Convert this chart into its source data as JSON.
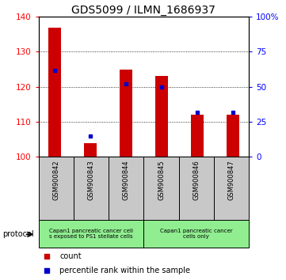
{
  "title": "GDS5099 / ILMN_1686937",
  "categories": [
    "GSM900842",
    "GSM900843",
    "GSM900844",
    "GSM900845",
    "GSM900846",
    "GSM900847"
  ],
  "red_values": [
    137.0,
    104.0,
    125.0,
    123.0,
    112.0,
    112.0
  ],
  "blue_percentiles": [
    62,
    15,
    52,
    50,
    32,
    32
  ],
  "ylim_left": [
    100,
    140
  ],
  "ylim_right": [
    0,
    100
  ],
  "yticks_left": [
    100,
    110,
    120,
    130,
    140
  ],
  "yticks_right": [
    0,
    25,
    50,
    75,
    100
  ],
  "ytick_right_labels": [
    "0",
    "25",
    "50",
    "75",
    "100%"
  ],
  "group1_label": "Capan1 pancreatic cancer cell\ns exposed to PS1 stellate cells",
  "group2_label": "Capan1 pancreatic cancer\ncells only",
  "protocol_label": "protocol",
  "legend_count_label": "count",
  "legend_percentile_label": "percentile rank within the sample",
  "red_color": "#cc0000",
  "blue_color": "#0000cc",
  "group_bg_color": "#90ee90",
  "tick_area_color": "#c8c8c8",
  "title_fontsize": 10,
  "tick_fontsize": 7.5
}
